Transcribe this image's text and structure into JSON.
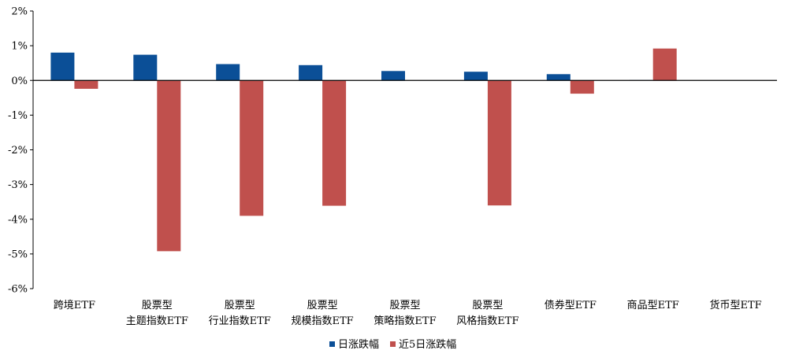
{
  "chart_data": {
    "type": "bar",
    "categories": [
      [
        "跨境ETF"
      ],
      [
        "股票型",
        "主题指数ETF"
      ],
      [
        "股票型",
        "行业指数ETF"
      ],
      [
        "股票型",
        "规模指数ETF"
      ],
      [
        "股票型",
        "策略指数ETF"
      ],
      [
        "股票型",
        "风格指数ETF"
      ],
      [
        "债券型ETF"
      ],
      [
        "商品型ETF"
      ],
      [
        "货币型ETF"
      ]
    ],
    "series": [
      {
        "name": "日涨跌幅",
        "color": "#0B4F97",
        "values": [
          0.8,
          0.74,
          0.47,
          0.44,
          0.27,
          0.25,
          0.18,
          0.01,
          0.0
        ]
      },
      {
        "name": "近5日涨跌幅",
        "color": "#C0504D",
        "values": [
          -0.24,
          -4.92,
          -3.9,
          -3.61,
          0.0,
          -3.6,
          -0.38,
          0.92,
          0.0
        ]
      }
    ],
    "ylim": [
      -6,
      2
    ],
    "yticks": [
      "2%",
      "1%",
      "0%",
      "-1%",
      "-2%",
      "-3%",
      "-4%",
      "-5%",
      "-6%"
    ],
    "ytick_values": [
      2,
      1,
      0,
      -1,
      -2,
      -3,
      -4,
      -5,
      -6
    ],
    "legend_position": "bottom-center",
    "grid": false
  }
}
